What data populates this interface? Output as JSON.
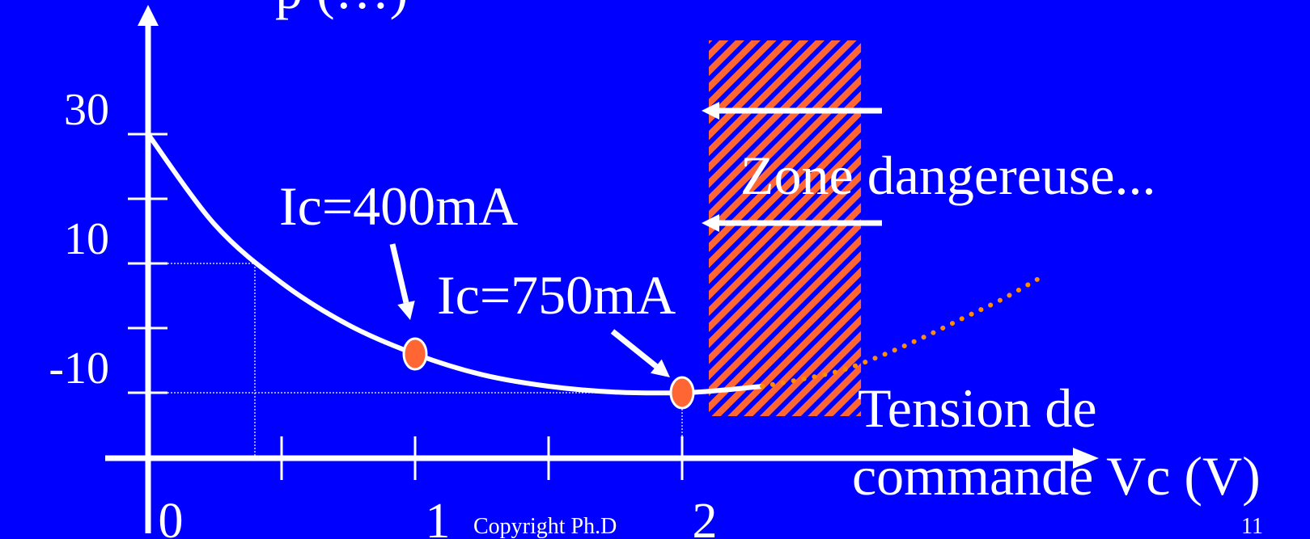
{
  "chart_data": {
    "type": "line",
    "title": "",
    "title_fragment": "p (…)",
    "xlabel": "Tension de commande Vc (V)",
    "xlabel_lines": [
      "Tension de",
      "commande Vc (V)"
    ],
    "ylabel": "",
    "x_ticks": [
      "0",
      "1",
      "2"
    ],
    "y_ticks": [
      "30",
      "10",
      "-10"
    ],
    "xlim": [
      0,
      3.5
    ],
    "ylim": [
      -20,
      40
    ],
    "series": [
      {
        "style": "solid",
        "color": "#ffffff",
        "x": [
          0,
          0.25,
          0.5,
          0.75,
          1.0,
          1.25,
          1.5,
          1.75,
          2.0,
          2.15,
          2.3
        ],
        "y": [
          30,
          16,
          7,
          0.5,
          -4,
          -7.2,
          -9,
          -9.9,
          -10,
          -9.6,
          -9
        ]
      },
      {
        "style": "dotted",
        "color": "#ff8c00",
        "x": [
          2.3,
          2.45,
          2.6,
          2.75,
          2.9,
          3.05,
          3.2,
          3.35
        ],
        "y": [
          -9,
          -7.9,
          -6.5,
          -4.2,
          -1.5,
          1.5,
          4.5,
          8
        ]
      }
    ],
    "guides": [
      {
        "x": 0.4,
        "y": 10
      },
      {
        "x": 2.0,
        "y": -10
      }
    ],
    "points": [
      {
        "label": "Ic=400mA",
        "x": 1.0,
        "y": -4,
        "color": "#ff6633"
      },
      {
        "label": "Ic=750mA",
        "x": 2.0,
        "y": -10,
        "color": "#ff6633"
      }
    ],
    "danger_zone": {
      "label": "Zone dangereuse...",
      "x_start": 2.1,
      "x_end": 2.67,
      "fill": "#ff6633",
      "hatch": "#0000ff"
    },
    "grid": false,
    "legend": "none"
  },
  "footer": {
    "copyright": "Copyright Ph.D",
    "slide_number": "11"
  },
  "colors": {
    "background": "#0000ff",
    "foreground": "#ffffff",
    "marker": "#ff6633",
    "dotted": "#ff8c00"
  }
}
